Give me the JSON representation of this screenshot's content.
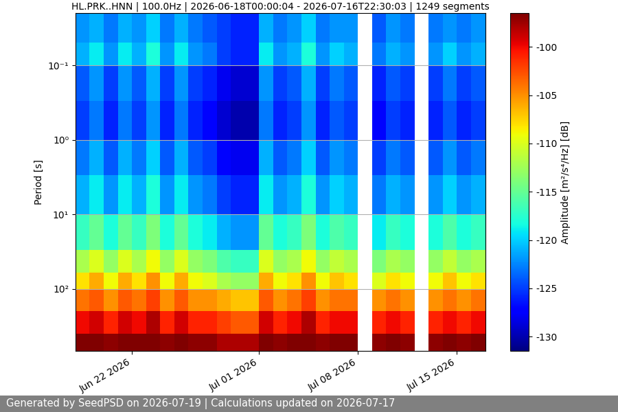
{
  "chart_data": {
    "type": "heatmap",
    "title": "HL.PRK..HNN | 100.0Hz | 2026-06-18T00:00:04 - 2026-07-16T22:30:03 | 1249 segments",
    "ylabel": "Period [s]",
    "colorbar_label": "Amplitude [m²/s⁴/Hz] [dB]",
    "footer": "Generated by SeedPSD on 2026-07-19 | Calculations updated on 2026-07-17",
    "x": [
      "2026-06-18",
      "2026-06-19",
      "2026-06-20",
      "2026-06-21",
      "2026-06-22",
      "2026-06-23",
      "2026-06-24",
      "2026-06-25",
      "2026-06-26",
      "2026-06-27",
      "2026-06-28",
      "2026-06-29",
      "2026-06-30",
      "2026-07-01",
      "2026-07-02",
      "2026-07-03",
      "2026-07-04",
      "2026-07-05",
      "2026-07-06",
      "2026-07-07",
      "2026-07-08",
      "2026-07-09",
      "2026-07-10",
      "2026-07-11",
      "2026-07-12",
      "2026-07-13",
      "2026-07-14",
      "2026-07-15",
      "2026-07-16",
      "2026-07-17"
    ],
    "y": [
      0.02,
      0.05,
      0.1,
      0.3,
      1,
      3,
      10,
      30,
      60,
      100,
      200,
      400,
      681
    ],
    "cells": [
      [
        -122,
        -121,
        -123,
        -121,
        -122,
        -120,
        -123,
        -121,
        -123,
        -124,
        -125,
        -126,
        -126,
        -121,
        -123,
        -122,
        -120,
        -123,
        -122,
        -122,
        null,
        -124,
        -122,
        -123,
        null,
        -123,
        -122,
        -123,
        -122
      ],
      [
        -121,
        -119,
        -122,
        -119,
        -121,
        -118,
        -122,
        -119,
        -122,
        -123,
        -125,
        -126,
        -126,
        -119,
        -122,
        -121,
        -118,
        -122,
        -120,
        -121,
        null,
        -123,
        -121,
        -122,
        null,
        -122,
        -120,
        -122,
        -121
      ],
      [
        -124,
        -122,
        -125,
        -122,
        -124,
        -121,
        -125,
        -122,
        -125,
        -126,
        -128,
        -129,
        -129,
        -122,
        -125,
        -124,
        -121,
        -125,
        -123,
        -124,
        null,
        -126,
        -124,
        -125,
        null,
        -125,
        -123,
        -125,
        -124
      ],
      [
        -125,
        -123,
        -126,
        -123,
        -125,
        -122,
        -126,
        -123,
        -126,
        -127,
        -129,
        -130,
        -130,
        -123,
        -126,
        -125,
        -122,
        -126,
        -124,
        -125,
        null,
        -127,
        -125,
        -126,
        null,
        -126,
        -124,
        -126,
        -125
      ],
      [
        -123,
        -121,
        -124,
        -121,
        -123,
        -120,
        -124,
        -121,
        -124,
        -125,
        -127,
        -128,
        -128,
        -121,
        -124,
        -123,
        -120,
        -124,
        -122,
        -123,
        null,
        -125,
        -123,
        -124,
        null,
        -124,
        -122,
        -124,
        -123
      ],
      [
        -121,
        -119,
        -122,
        -119,
        -121,
        -118,
        -122,
        -119,
        -122,
        -123,
        -125,
        -126,
        -126,
        -119,
        -122,
        -121,
        -118,
        -122,
        -120,
        -121,
        null,
        -123,
        -121,
        -122,
        null,
        -122,
        -120,
        -122,
        -121
      ],
      [
        -117,
        -115,
        -118,
        -115,
        -117,
        -114,
        -118,
        -115,
        -118,
        -119,
        -121,
        -122,
        -122,
        -115,
        -118,
        -117,
        -114,
        -118,
        -116,
        -117,
        null,
        -119,
        -117,
        -118,
        null,
        -118,
        -116,
        -118,
        -117
      ],
      [
        -112,
        -110,
        -113,
        -110,
        -112,
        -109,
        -113,
        -110,
        -113,
        -114,
        -116,
        -117,
        -117,
        -110,
        -113,
        -112,
        -109,
        -113,
        -111,
        -112,
        null,
        -114,
        -112,
        -113,
        null,
        -113,
        -111,
        -113,
        -112
      ],
      [
        -108,
        -106,
        -109,
        -106,
        -108,
        -105,
        -109,
        -106,
        -109,
        -110,
        -112,
        -113,
        -113,
        -106,
        -109,
        -108,
        -105,
        -109,
        -107,
        -108,
        null,
        -110,
        -108,
        -109,
        null,
        -109,
        -107,
        -109,
        -108
      ],
      [
        -104,
        -103,
        -105,
        -103,
        -104,
        -102,
        -105,
        -103,
        -105,
        -105,
        -106,
        -107,
        -107,
        -103,
        -105,
        -104,
        -102,
        -105,
        -104,
        -104,
        null,
        -105,
        -104,
        -105,
        null,
        -105,
        -104,
        -105,
        -104
      ],
      [
        -100,
        -99,
        -101,
        -99,
        -100,
        -98,
        -101,
        -99,
        -101,
        -101,
        -102,
        -103,
        -103,
        -99,
        -101,
        -100,
        -98,
        -101,
        -100,
        -100,
        null,
        -101,
        -100,
        -101,
        null,
        -101,
        -100,
        -101,
        -100
      ],
      [
        -96,
        -96,
        -97,
        -96,
        -96,
        -96,
        -97,
        -96,
        -97,
        -97,
        -98,
        -98,
        -98,
        -96,
        -97,
        -96,
        -96,
        -97,
        -96,
        -96,
        null,
        -97,
        -96,
        -97,
        null,
        -97,
        -96,
        -97,
        -96
      ]
    ],
    "xlim": [
      "2026-06-18",
      "2026-07-17"
    ],
    "xticks": [
      {
        "value": "2026-06-22",
        "label": "Jun 22 2026"
      },
      {
        "value": "2026-07-01",
        "label": "Jul 01 2026"
      },
      {
        "value": "2026-07-08",
        "label": "Jul 08 2026"
      },
      {
        "value": "2026-07-15",
        "label": "Jul 15 2026"
      }
    ],
    "ylim": [
      681,
      0.02
    ],
    "yticks": [
      {
        "value": 0.1,
        "label": "10⁻¹"
      },
      {
        "value": 1,
        "label": "10⁰"
      },
      {
        "value": 10,
        "label": "10¹"
      },
      {
        "value": 100,
        "label": "10²"
      }
    ],
    "log": "y",
    "grid": "y",
    "colorbar": {
      "range": [
        -131.5,
        -96.5
      ],
      "ticks": [
        -130,
        -125,
        -120,
        -115,
        -110,
        -105,
        -100
      ]
    }
  }
}
